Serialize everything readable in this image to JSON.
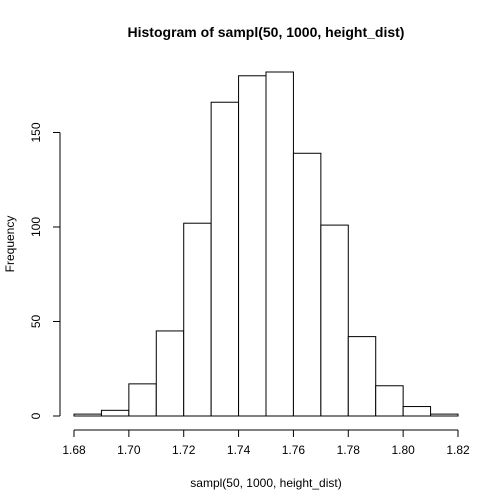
{
  "chart_data": {
    "type": "bar",
    "title": "Histogram of sampl(50, 1000, height_dist)",
    "xlabel": "sampl(50, 1000, height_dist)",
    "ylabel": "Frequency",
    "bin_edges": [
      1.68,
      1.69,
      1.7,
      1.71,
      1.72,
      1.73,
      1.74,
      1.75,
      1.76,
      1.77,
      1.78,
      1.79,
      1.8,
      1.81,
      1.82
    ],
    "values": [
      1,
      3,
      17,
      45,
      102,
      166,
      180,
      182,
      139,
      101,
      42,
      16,
      5,
      1
    ],
    "xlim": [
      1.68,
      1.82
    ],
    "ylim": [
      0,
      182
    ],
    "x_ticks": [
      1.68,
      1.7,
      1.72,
      1.74,
      1.76,
      1.78,
      1.8,
      1.82
    ],
    "x_tick_labels": [
      "1.68",
      "1.70",
      "1.72",
      "1.74",
      "1.76",
      "1.78",
      "1.80",
      "1.82"
    ],
    "y_ticks": [
      0,
      50,
      100,
      150
    ],
    "y_tick_labels": [
      "0",
      "50",
      "100",
      "150"
    ],
    "grid": false,
    "legend": "none"
  }
}
